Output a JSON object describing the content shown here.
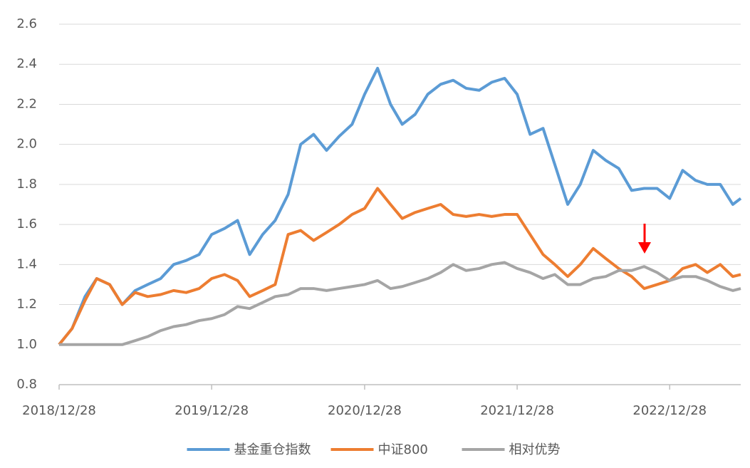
{
  "chart_data": {
    "type": "line",
    "x": [
      "2018/12/28",
      "2019/01/28",
      "2019/02/28",
      "2019/03/28",
      "2019/04/28",
      "2019/05/28",
      "2019/06/28",
      "2019/07/28",
      "2019/08/28",
      "2019/09/28",
      "2019/10/28",
      "2019/11/28",
      "2019/12/28",
      "2020/01/28",
      "2020/02/28",
      "2020/03/28",
      "2020/04/28",
      "2020/05/28",
      "2020/06/28",
      "2020/07/28",
      "2020/08/28",
      "2020/09/28",
      "2020/10/28",
      "2020/11/28",
      "2020/12/28",
      "2021/01/28",
      "2021/02/28",
      "2021/03/28",
      "2021/04/28",
      "2021/05/28",
      "2021/06/28",
      "2021/07/28",
      "2021/08/28",
      "2021/09/28",
      "2021/10/28",
      "2021/11/28",
      "2021/12/28",
      "2022/01/28",
      "2022/02/28",
      "2022/03/28",
      "2022/04/28",
      "2022/05/28",
      "2022/06/28",
      "2022/07/28",
      "2022/08/28",
      "2022/09/28",
      "2022/10/28",
      "2022/11/28",
      "2022/12/28",
      "2023/01/28",
      "2023/02/28",
      "2023/03/28",
      "2023/04/28",
      "2023/05/28",
      "2023/06/16"
    ],
    "series": [
      {
        "name": "基金重仓指数",
        "color": "#5b9bd5",
        "values": [
          1.0,
          1.08,
          1.24,
          1.33,
          1.3,
          1.2,
          1.27,
          1.3,
          1.33,
          1.4,
          1.42,
          1.45,
          1.55,
          1.58,
          1.62,
          1.45,
          1.55,
          1.62,
          1.75,
          2.0,
          2.05,
          1.97,
          2.04,
          2.1,
          2.25,
          2.38,
          2.2,
          2.1,
          2.15,
          2.25,
          2.3,
          2.32,
          2.28,
          2.27,
          2.31,
          2.33,
          2.25,
          2.05,
          2.08,
          1.9,
          1.7,
          1.8,
          1.97,
          1.92,
          1.88,
          1.77,
          1.78,
          1.78,
          1.73,
          1.87,
          1.82,
          1.8,
          1.8,
          1.7,
          1.73
        ]
      },
      {
        "name": "中证800",
        "color": "#ed7d31",
        "values": [
          1.0,
          1.08,
          1.22,
          1.33,
          1.3,
          1.2,
          1.26,
          1.24,
          1.25,
          1.27,
          1.26,
          1.28,
          1.33,
          1.35,
          1.32,
          1.24,
          1.27,
          1.3,
          1.55,
          1.57,
          1.52,
          1.56,
          1.6,
          1.65,
          1.68,
          1.78,
          1.7,
          1.63,
          1.66,
          1.68,
          1.7,
          1.65,
          1.64,
          1.65,
          1.64,
          1.65,
          1.65,
          1.55,
          1.45,
          1.4,
          1.34,
          1.4,
          1.48,
          1.43,
          1.38,
          1.34,
          1.28,
          1.3,
          1.32,
          1.38,
          1.4,
          1.36,
          1.4,
          1.34,
          1.35
        ]
      },
      {
        "name": "相对优势",
        "color": "#a5a5a5",
        "values": [
          1.0,
          1.0,
          1.0,
          1.0,
          1.0,
          1.0,
          1.02,
          1.04,
          1.07,
          1.09,
          1.1,
          1.12,
          1.13,
          1.15,
          1.19,
          1.18,
          1.21,
          1.24,
          1.25,
          1.28,
          1.28,
          1.27,
          1.28,
          1.29,
          1.3,
          1.32,
          1.28,
          1.29,
          1.31,
          1.33,
          1.36,
          1.4,
          1.37,
          1.38,
          1.4,
          1.41,
          1.38,
          1.36,
          1.33,
          1.35,
          1.3,
          1.3,
          1.33,
          1.34,
          1.37,
          1.37,
          1.39,
          1.36,
          1.32,
          1.34,
          1.34,
          1.32,
          1.29,
          1.27,
          1.28
        ]
      }
    ],
    "xlim": [
      "2018/12/28",
      "2023/06/16"
    ],
    "xticks": [
      "2018/12/28",
      "2019/12/28",
      "2020/12/28",
      "2021/12/28",
      "2022/12/28"
    ],
    "ylim": [
      0.8,
      2.6
    ],
    "yticks": [
      {
        "value": 0.8,
        "label": "0.8"
      },
      {
        "value": 1.0,
        "label": "1.0"
      },
      1.2,
      1.4,
      1.6,
      1.8,
      {
        "value": 2.0,
        "label": "2.0"
      },
      2.2,
      2.4,
      2.6
    ],
    "grid": true,
    "legend": "bottom"
  }
}
